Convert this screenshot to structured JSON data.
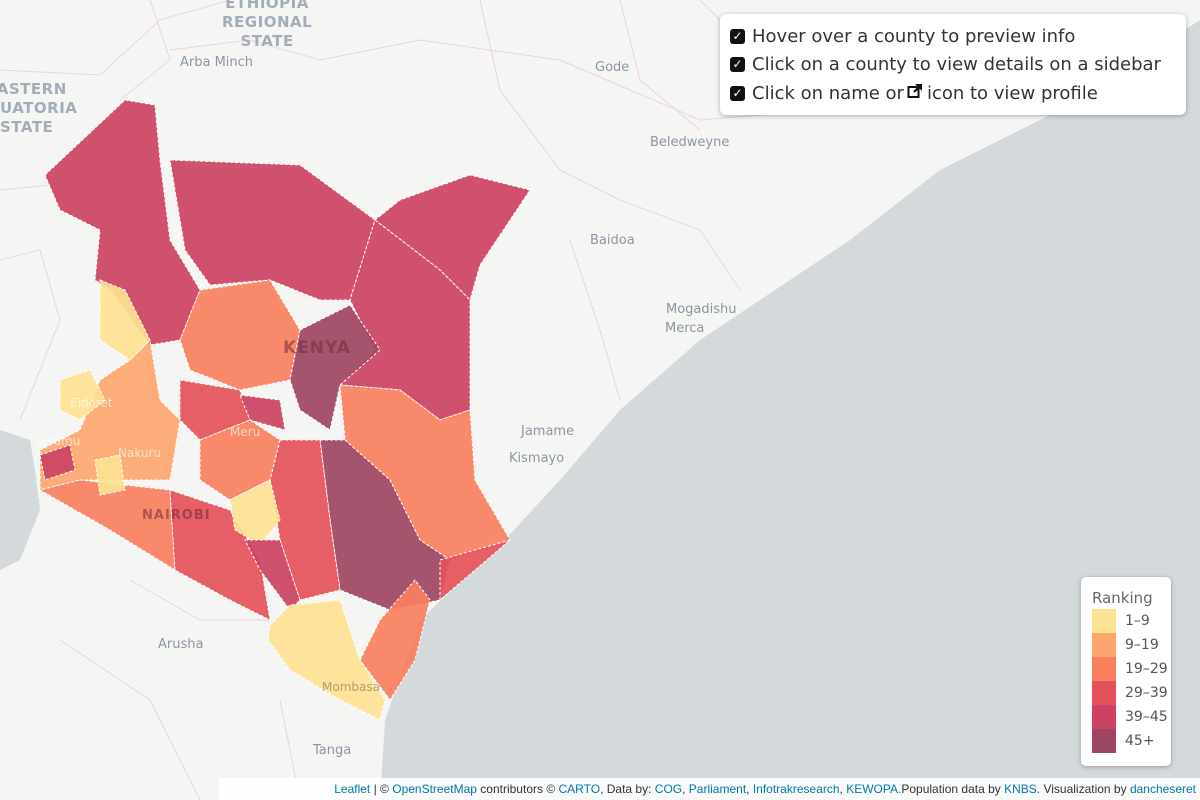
{
  "map": {
    "country_label": "KENYA",
    "kenya_labels": [
      "NAIROBI",
      "Kisumu",
      "Nakuru",
      "Eldoret",
      "Meru",
      "Mombasa"
    ],
    "places": [
      "Arba Minch",
      "Gode",
      "Beledweyne",
      "Baidoa",
      "Mogadishu",
      "Merca",
      "Jamame",
      "Kismayo",
      "Arusha",
      "Tanga"
    ],
    "regions": {
      "ethiopia": [
        "ETHIOPIA",
        "REGIONAL",
        "STATE"
      ],
      "equatoria": [
        "EASTERN",
        "EQUATORIA",
        "STATE"
      ]
    },
    "colors": {
      "land": "#f5f5f3",
      "sea": "#d4dadc"
    }
  },
  "info": {
    "items": [
      {
        "checked": true,
        "text": "Hover over a county to preview info"
      },
      {
        "checked": true,
        "text": "Click on a county to view details on a sidebar"
      },
      {
        "checked": true,
        "text_before": "Click on name or",
        "icon": "external-link-icon",
        "text_after": "icon to view profile"
      }
    ]
  },
  "legend": {
    "title": "Ranking",
    "items": [
      {
        "label": "1–9",
        "color": "#fde293"
      },
      {
        "label": "9–19",
        "color": "#fca66f"
      },
      {
        "label": "19–29",
        "color": "#f97f60"
      },
      {
        "label": "29–39",
        "color": "#e4515a"
      },
      {
        "label": "39–45",
        "color": "#cc4263"
      },
      {
        "label": "45+",
        "color": "#9e4563"
      }
    ]
  },
  "attribution": {
    "leaflet": "Leaflet",
    "sep1": " | © ",
    "osm": "OpenStreetMap",
    "contributors": " contributors © ",
    "carto": "CARTO",
    "databy": ", Data by: ",
    "cog": "COG",
    "comma1": ", ",
    "parliament": "Parliament",
    "comma2": ", ",
    "infotrak": "Infotrakresearch",
    "comma3": ", ",
    "kewopa": "KEWOPA.",
    "popdata": "Population data by ",
    "knbs": "KNBS.",
    "vis": " Visualization by ",
    "author": "dancheseret"
  }
}
